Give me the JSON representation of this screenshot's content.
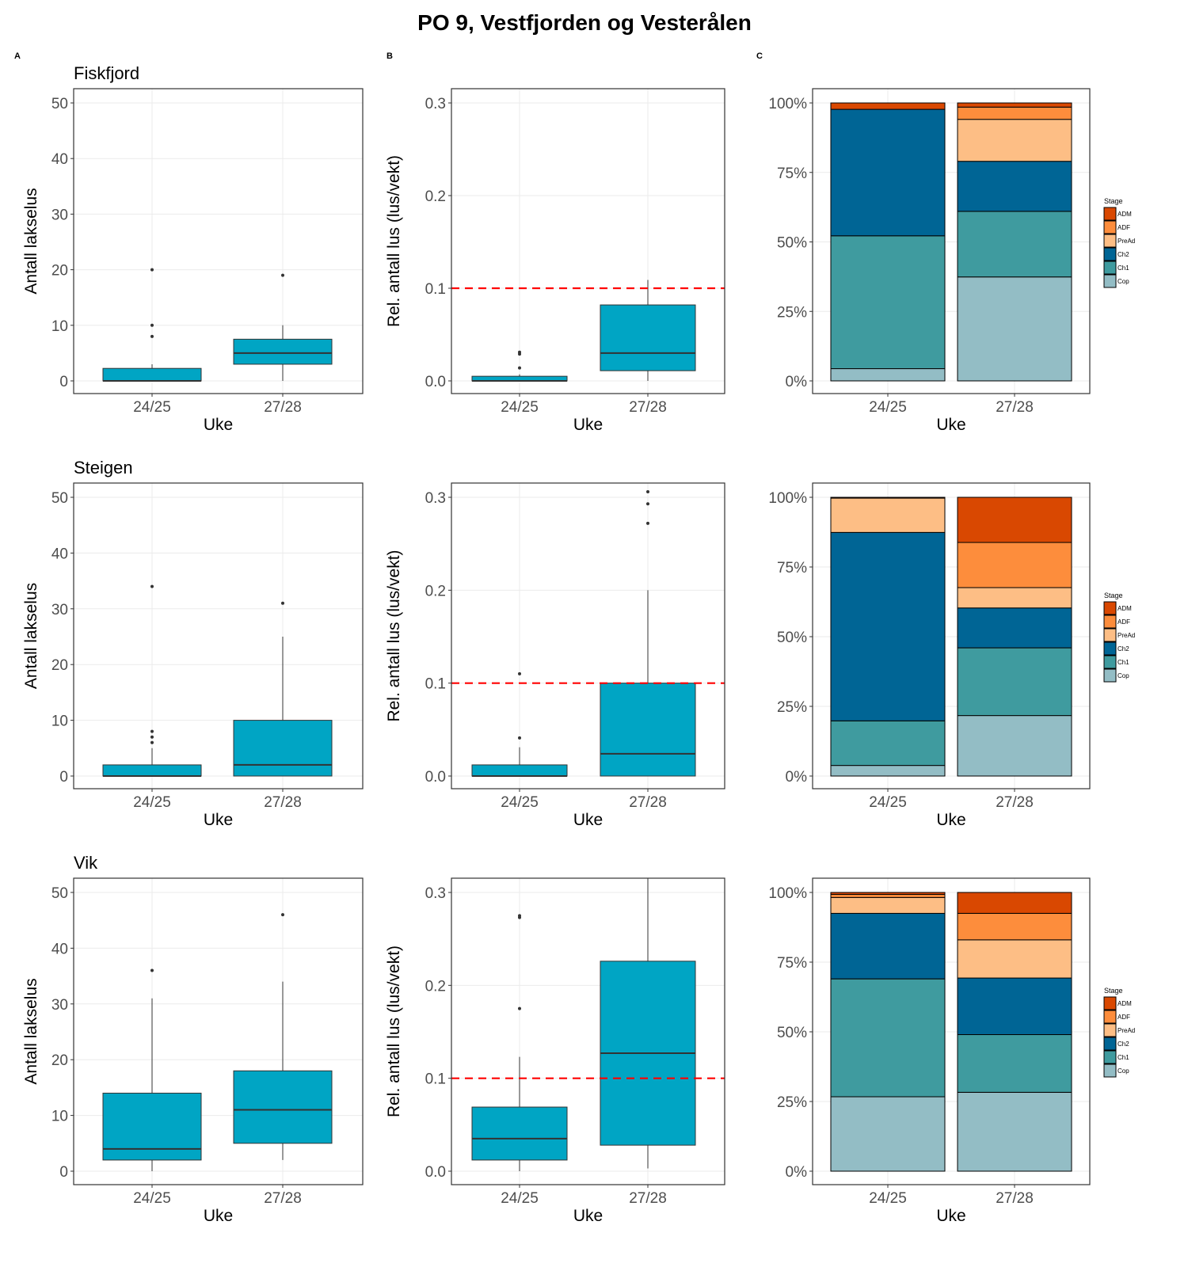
{
  "chart_data": {
    "title": "PO 9, Vestfjorden og Vesterålen",
    "panel_tags": [
      "A",
      "B",
      "C"
    ],
    "categories": [
      "24/25",
      "27/28"
    ],
    "xlabel": "Uke",
    "threshold": {
      "value": 0.1,
      "color": "#ff0000",
      "style": "dashed",
      "panel": "B"
    },
    "box_color": "#00a5c4",
    "stage_legend": {
      "title": "Stage",
      "stages": [
        {
          "name": "ADM",
          "color": "#d94801"
        },
        {
          "name": "ADF",
          "color": "#fd8d3c"
        },
        {
          "name": "PreAd",
          "color": "#fdbe85"
        },
        {
          "name": "Ch2",
          "color": "#006595"
        },
        {
          "name": "Ch1",
          "color": "#3f9b9f"
        },
        {
          "name": "Cop",
          "color": "#93bdc5"
        }
      ]
    },
    "panels_A": {
      "type": "box",
      "ylabel": "Antall lakselus",
      "ylim": [
        0,
        50
      ],
      "yticks": [
        "0",
        "10",
        "20",
        "30",
        "40",
        "50"
      ],
      "grid": true
    },
    "panels_B": {
      "type": "box",
      "ylabel": "Rel. antall lus (lus/vekt)",
      "ylim": [
        0,
        0.3
      ],
      "yticks": [
        "0.0",
        "0.1",
        "0.2",
        "0.3"
      ],
      "grid": true
    },
    "panels_C": {
      "type": "bar",
      "stacked": "percent",
      "ylim": [
        0,
        100
      ],
      "yticks": [
        "0%",
        "25%",
        "50%",
        "75%",
        "100%"
      ],
      "grid": true,
      "legend_position": "right"
    },
    "sites": [
      {
        "name": "Fiskfjord",
        "A": [
          {
            "category": "24/25",
            "whisker_low": 0,
            "q1": 0,
            "median": 0,
            "q3": 2.25,
            "whisker_high": 3,
            "outliers": [
              8,
              10,
              20
            ]
          },
          {
            "category": "27/28",
            "whisker_low": 0,
            "q1": 3,
            "median": 5,
            "q3": 7.5,
            "whisker_high": 10,
            "outliers": [
              19
            ]
          }
        ],
        "B": [
          {
            "category": "24/25",
            "whisker_low": 0,
            "q1": 0,
            "median": 0,
            "q3": 0.005,
            "whisker_high": 0.007,
            "outliers": [
              0.014,
              0.029,
              0.031
            ]
          },
          {
            "category": "27/28",
            "whisker_low": 0,
            "q1": 0.011,
            "median": 0.03,
            "q3": 0.082,
            "whisker_high": 0.109,
            "outliers": []
          }
        ],
        "C": [
          {
            "category": "24/25",
            "Cop": 4.4,
            "Ch1": 47.8,
            "Ch2": 45.5,
            "PreAd": 0,
            "ADF": 0,
            "ADM": 2.3
          },
          {
            "category": "27/28",
            "Cop": 37.4,
            "Ch1": 23.6,
            "Ch2": 18.0,
            "PreAd": 15.1,
            "ADF": 4.4,
            "ADM": 1.5
          }
        ]
      },
      {
        "name": "Steigen",
        "A": [
          {
            "category": "24/25",
            "whisker_low": 0,
            "q1": 0,
            "median": 0,
            "q3": 2,
            "whisker_high": 5,
            "outliers": [
              6,
              7,
              8,
              34
            ]
          },
          {
            "category": "27/28",
            "whisker_low": 0,
            "q1": 0,
            "median": 2,
            "q3": 10,
            "whisker_high": 25,
            "outliers": [
              31
            ]
          }
        ],
        "B": [
          {
            "category": "24/25",
            "whisker_low": 0,
            "q1": 0,
            "median": 0,
            "q3": 0.012,
            "whisker_high": 0.031,
            "outliers": [
              0.041,
              0.11
            ]
          },
          {
            "category": "27/28",
            "whisker_low": 0,
            "q1": 0,
            "median": 0.024,
            "q3": 0.1,
            "whisker_high": 0.2,
            "outliers": [
              0.272,
              0.293,
              0.306
            ]
          }
        ],
        "C": [
          {
            "category": "24/25",
            "Cop": 3.8,
            "Ch1": 16.0,
            "Ch2": 67.6,
            "PreAd": 12.3,
            "ADF": 0,
            "ADM": 0.3
          },
          {
            "category": "27/28",
            "Cop": 21.7,
            "Ch1": 24.3,
            "Ch2": 14.3,
            "PreAd": 7.3,
            "ADF": 16.2,
            "ADM": 16.2
          }
        ]
      },
      {
        "name": "Vik",
        "A": [
          {
            "category": "24/25",
            "whisker_low": 0,
            "q1": 2,
            "median": 4,
            "q3": 14,
            "whisker_high": 31,
            "outliers": [
              36
            ]
          },
          {
            "category": "27/28",
            "whisker_low": 2,
            "q1": 5,
            "median": 11,
            "q3": 18,
            "whisker_high": 34,
            "outliers": [
              46
            ]
          }
        ],
        "B": [
          {
            "category": "24/25",
            "whisker_low": 0,
            "q1": 0.012,
            "median": 0.035,
            "q3": 0.069,
            "whisker_high": 0.123,
            "outliers": [
              0.175,
              0.273,
              0.275
            ]
          },
          {
            "category": "27/28",
            "whisker_low": 0.003,
            "q1": 0.028,
            "median": 0.127,
            "q3": 0.226,
            "whisker_high": 0.33,
            "outliers": []
          }
        ],
        "C": [
          {
            "category": "24/25",
            "Cop": 26.7,
            "Ch1": 42.3,
            "Ch2": 23.5,
            "PreAd": 5.7,
            "ADF": 1.1,
            "ADM": 0.7
          },
          {
            "category": "27/28",
            "Cop": 28.3,
            "Ch1": 20.7,
            "Ch2": 20.3,
            "PreAd": 13.7,
            "ADF": 9.5,
            "ADM": 7.5
          }
        ]
      }
    ]
  }
}
